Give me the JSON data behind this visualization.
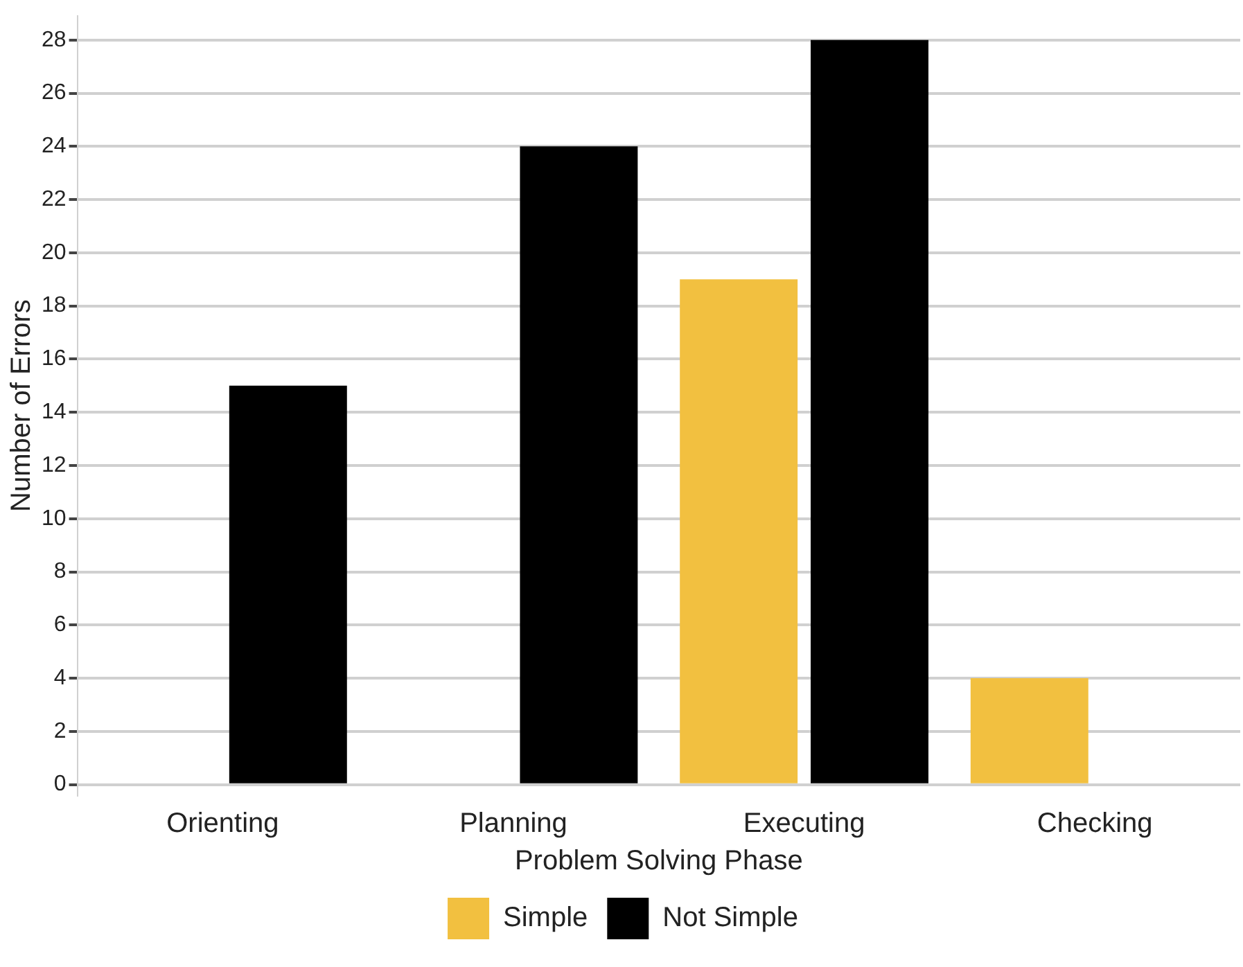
{
  "chart_data": {
    "type": "bar",
    "xlabel": "Problem Solving Phase",
    "ylabel": "Number of Errors",
    "categories": [
      "Orienting",
      "Planning",
      "Executing",
      "Checking"
    ],
    "series": [
      {
        "name": "Simple",
        "color": "#f2c040",
        "values": [
          0,
          0,
          19,
          4
        ]
      },
      {
        "name": "Not Simple",
        "color": "#000000",
        "values": [
          15,
          24,
          28,
          0
        ]
      }
    ],
    "ylim": [
      -0.4,
      28.9
    ],
    "yticks": [
      0,
      2,
      4,
      6,
      8,
      10,
      12,
      14,
      16,
      18,
      20,
      22,
      24,
      26,
      28
    ],
    "grid": "y",
    "legend": "bottom"
  }
}
